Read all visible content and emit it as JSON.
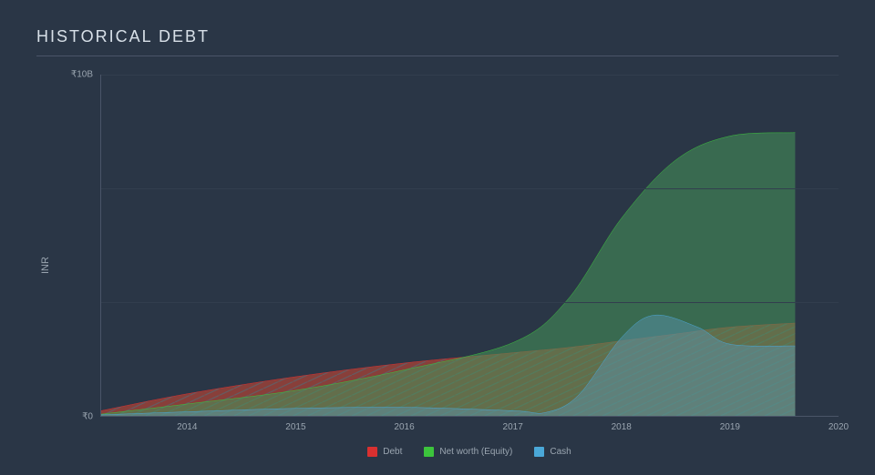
{
  "chart": {
    "title": "HISTORICAL DEBT",
    "ylabel": "INR",
    "background_color": "#2a3646",
    "grid_color": "#323e4e",
    "axis_color": "#4a5568",
    "text_color": "#9aa5b0",
    "title_color": "#d8e0e8",
    "title_fontsize": 18,
    "label_fontsize": 11,
    "tick_fontsize": 10,
    "xlim": [
      2013.2,
      2020
    ],
    "ylim": [
      0,
      10
    ],
    "y_ticks": [
      {
        "value": 0,
        "label": "₹0"
      },
      {
        "value": 10,
        "label": "₹10B"
      }
    ],
    "y_gridlines": [
      3.33,
      6.67,
      10
    ],
    "x_ticks": [
      {
        "value": 2014,
        "label": "2014"
      },
      {
        "value": 2015,
        "label": "2015"
      },
      {
        "value": 2016,
        "label": "2016"
      },
      {
        "value": 2017,
        "label": "2017"
      },
      {
        "value": 2018,
        "label": "2018"
      },
      {
        "value": 2019,
        "label": "2019"
      },
      {
        "value": 2020,
        "label": "2020"
      }
    ],
    "series": [
      {
        "name": "Debt",
        "color": "#d93030",
        "fill": "rgba(200,70,50,0.6)",
        "hatch": true,
        "hatch_color": "rgba(90,100,110,0.8)",
        "x": [
          2013.2,
          2014,
          2015,
          2016,
          2017,
          2017.5,
          2018,
          2018.5,
          2019,
          2019.6
        ],
        "y": [
          0.15,
          0.65,
          1.15,
          1.55,
          1.85,
          2.0,
          2.2,
          2.4,
          2.6,
          2.72
        ]
      },
      {
        "name": "Net worth (Equity)",
        "color": "#3cc43c",
        "fill": "rgba(70,150,90,0.55)",
        "hatch": false,
        "x": [
          2013.2,
          2014,
          2015,
          2016,
          2017,
          2017.5,
          2018,
          2018.5,
          2019,
          2019.6
        ],
        "y": [
          0.05,
          0.35,
          0.75,
          1.35,
          2.15,
          3.4,
          5.8,
          7.5,
          8.2,
          8.3
        ]
      },
      {
        "name": "Cash",
        "color": "#4aa8d8",
        "fill": "rgba(90,150,180,0.45)",
        "hatch": false,
        "x": [
          2013.2,
          2014,
          2015,
          2016,
          2017,
          2017.3,
          2017.6,
          2018,
          2018.3,
          2018.7,
          2019,
          2019.6
        ],
        "y": [
          0.03,
          0.12,
          0.22,
          0.25,
          0.15,
          0.1,
          0.6,
          2.3,
          2.95,
          2.6,
          2.1,
          2.05
        ]
      }
    ],
    "legend_items": [
      {
        "label": "Debt",
        "color": "#d93030"
      },
      {
        "label": "Net worth (Equity)",
        "color": "#3cc43c"
      },
      {
        "label": "Cash",
        "color": "#4aa8d8"
      }
    ]
  }
}
